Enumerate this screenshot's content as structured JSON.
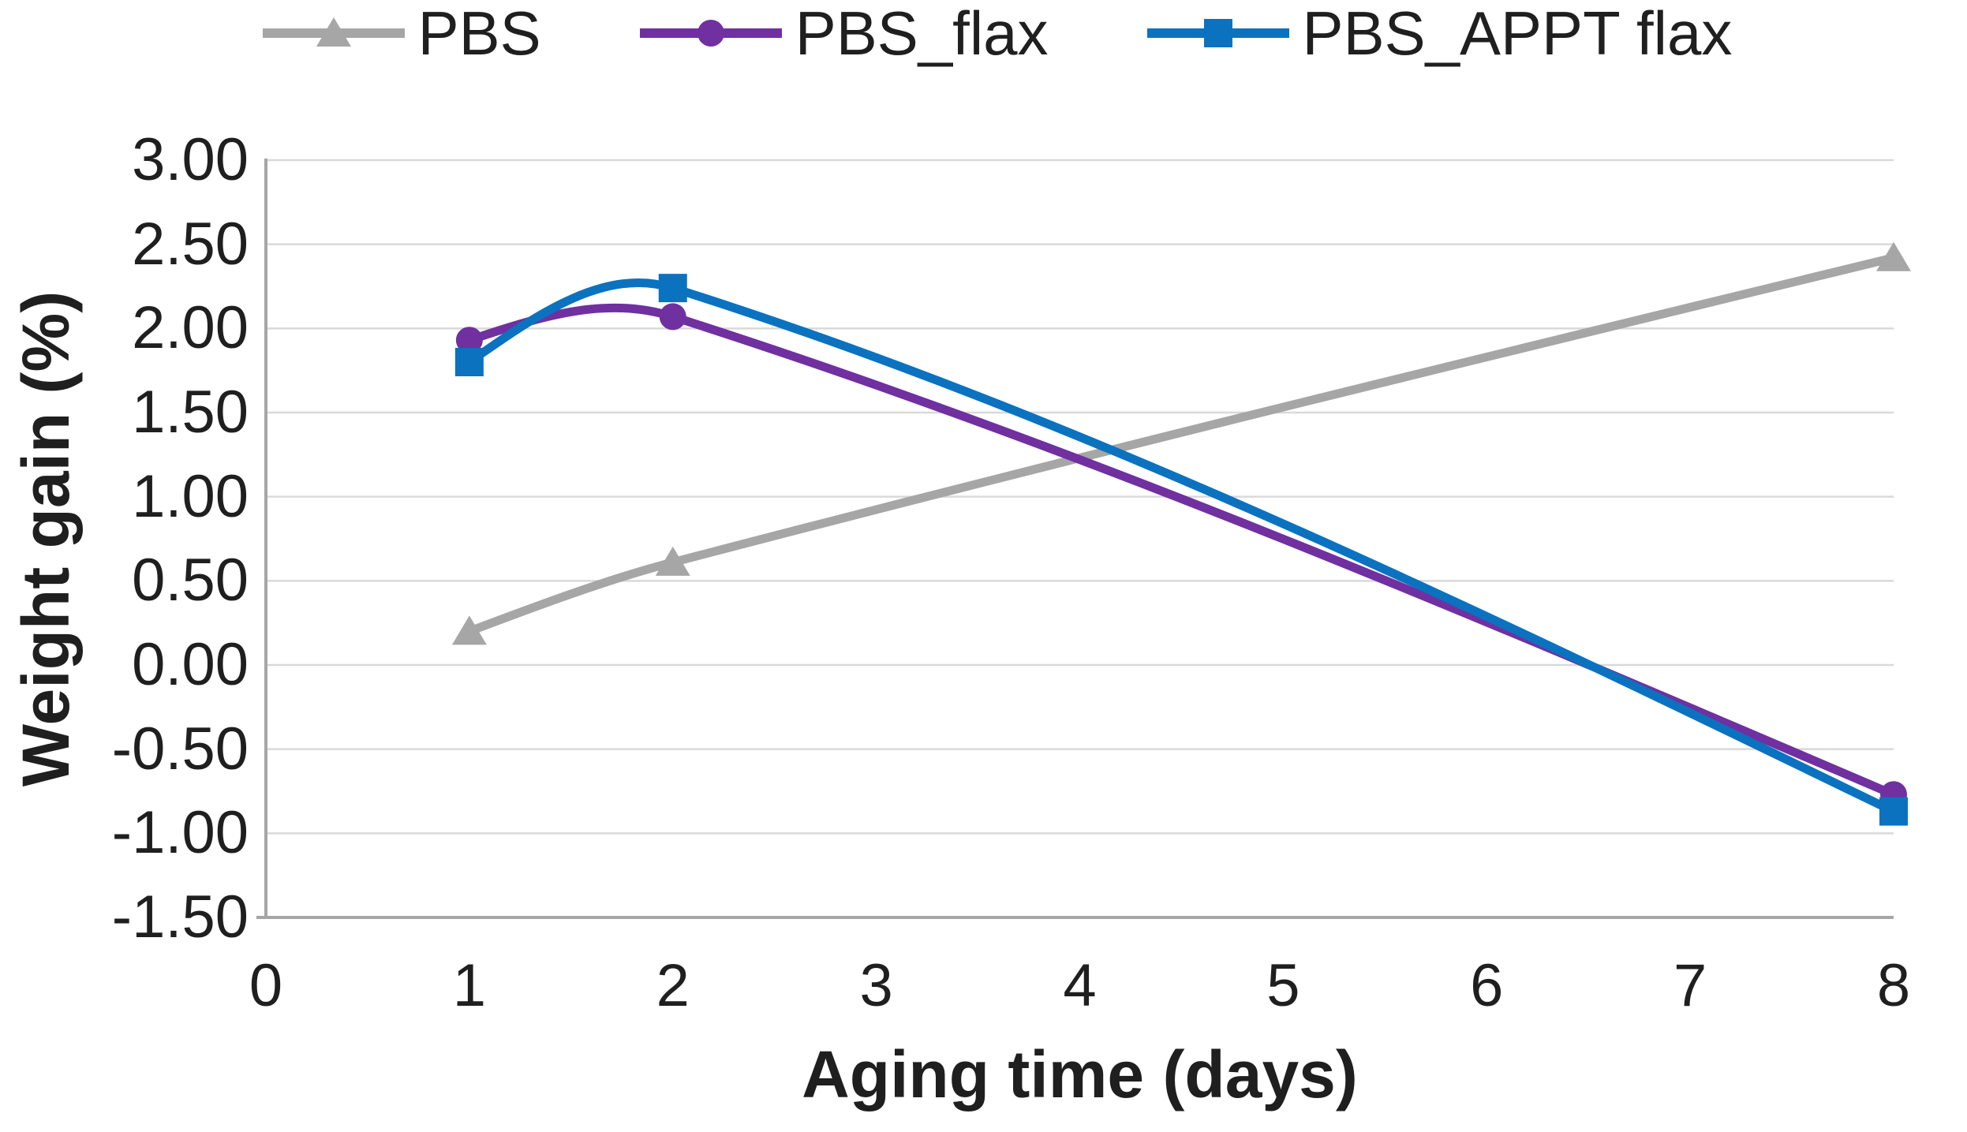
{
  "chart_data": {
    "type": "line",
    "title": "",
    "xlabel": "Aging time (days)",
    "ylabel": "Weight gain (%)",
    "x_ticks": [
      "0",
      "1",
      "2",
      "3",
      "4",
      "5",
      "6",
      "7",
      "8"
    ],
    "y_ticks": [
      "3.00",
      "2.50",
      "2.00",
      "1.50",
      "1.00",
      "0.50",
      "0.00",
      "-0.50",
      "-1.00",
      "-1.50"
    ],
    "xlim": [
      0,
      8
    ],
    "ylim": [
      -1.5,
      3.0
    ],
    "grid": true,
    "smooth_lines": true,
    "legend_position": "top",
    "axis_color": "#A6A6A6",
    "gridline_color": "#D9D9D9",
    "text_color": "#1f1f1f",
    "series": [
      {
        "name": "PBS",
        "color": "#A6A6A6",
        "marker": "triangle",
        "x": [
          1,
          2,
          8
        ],
        "y": [
          0.2,
          0.61,
          2.42
        ]
      },
      {
        "name": "PBS_flax",
        "color": "#7030A0",
        "marker": "circle",
        "x": [
          1,
          2,
          8
        ],
        "y": [
          1.93,
          2.07,
          -0.77
        ]
      },
      {
        "name": "PBS_APPT flax",
        "color": "#0B72C0",
        "marker": "square",
        "x": [
          1,
          2,
          8
        ],
        "y": [
          1.8,
          2.24,
          -0.87
        ]
      }
    ]
  }
}
